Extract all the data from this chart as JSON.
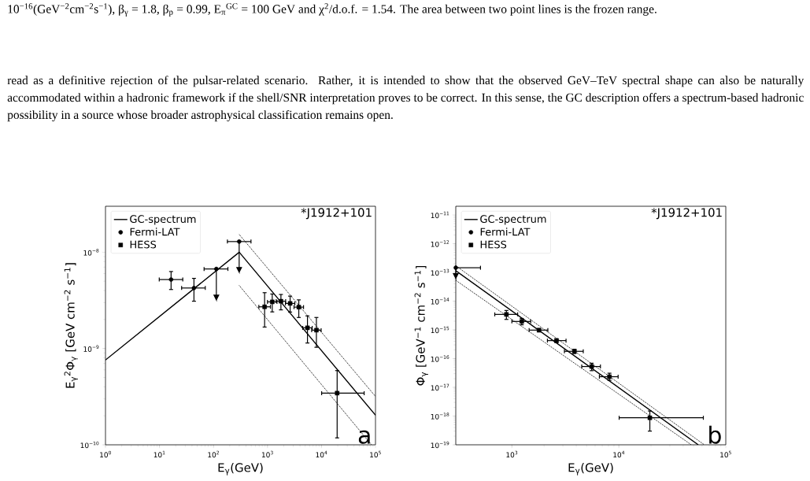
{
  "chart_data": [
    {
      "type": "scatter",
      "log": "xy",
      "legend": "top left",
      "xlabel": "E$_{γ}$(GeV)",
      "ylabel": "E$_{γ}$$^{2}$Φ$_{γ}$ [GeV cm$^{−2}$ s$^{−1}$]",
      "xlim": [
        1,
        100000
      ],
      "ylim": [
        1e-10,
        3e-08
      ],
      "xticks": [
        {
          "value": 1,
          "label": "10$^{0}$"
        },
        {
          "value": 10,
          "label": "10$^{1}$"
        },
        {
          "value": 100,
          "label": "10$^{2}$"
        },
        {
          "value": 1000,
          "label": "10$^{3}$"
        },
        {
          "value": 10000,
          "label": "10$^{4}$"
        },
        {
          "value": 100000,
          "label": "10$^{5}$"
        }
      ],
      "yticks": [
        {
          "value": 1e-10,
          "label": "10$^{−10}$"
        },
        {
          "value": 1e-09,
          "label": "10$^{−9}$"
        },
        {
          "value": 1e-08,
          "label": "10$^{−8}$"
        }
      ],
      "annotations": [
        "10$^{−16}$(GeV$^{−2}$cm$^{−2}$s$^{−1}$), β$_{γ}$ = 1.8, β$_{p}$ = 0.99, E$_{π}$$^{GC}$ = 100 GeV and χ$^{2}$/d.o.f. = 1.54.  The area between two point lines is the frozen range.",
        "read as a definitive rejection of the pulsar-related scenario. Rather, it is intended to show that the observed GeV–TeV spectral shape can also be naturally accommodated within a hadronic framework if the shell/SNR interpretation proves to be correct. In this sense, the GC description offers a spectrum-based hadronic possibility in a source whose broader astrophysical classification remains open.",
        "*J1912+101",
        "a"
      ],
      "series": [
        {
          "name": "GC-spectrum",
          "type": "line",
          "color": "#000000",
          "line_style": "solid",
          "x": [
            1,
            300,
            100000
          ],
          "values": [
            7.6e-10,
            1e-08,
            2.03e-10
          ]
        },
        {
          "type": "line",
          "color": "#000000",
          "line_style": "dotted",
          "x": [
            299,
            100000
          ],
          "values": [
            1.53e-08,
            3.18e-10
          ]
        },
        {
          "type": "line",
          "color": "#000000",
          "line_style": "dotted",
          "x": [
            299,
            84500
          ],
          "values": [
            4.52e-09,
            1e-10
          ]
        },
        {
          "name": "Fermi-LAT",
          "type": "scatter",
          "marker": "circle",
          "color": "#000000",
          "x": [
            16.4,
            43.5,
            113,
            299
          ],
          "values": [
            5.2e-09,
            4.25e-09,
            6.7e-09,
            1.29e-08
          ],
          "errors": [
            [
              4.1e-09,
              6.3e-09
            ],
            [
              3.1e-09,
              5.35e-09
            ],
            [
              3.2e-09,
              6.7e-09
            ],
            [
              6.2e-09,
              1.29e-08
            ]
          ],
          "xerrors": [
            [
              9.9,
              27
            ],
            [
              25.7,
              70.5
            ],
            [
              67,
              185
            ],
            [
              181,
              495
            ]
          ]
        },
        {
          "name": "HESS",
          "type": "scatter",
          "marker": "square",
          "color": "#000000",
          "x": [
            885,
            1225,
            1774,
            2625,
            3800,
            5500,
            8050,
            19500
          ],
          "values": [
            2.71e-09,
            3.05e-09,
            3.1e-09,
            2.94e-09,
            2.69e-09,
            1.64e-09,
            1.55e-09,
            3.44e-10
          ],
          "errors": [
            [
              1.67e-09,
              3.8e-09
            ],
            [
              2.4e-09,
              3.68e-09
            ],
            [
              2.52e-09,
              3.64e-09
            ],
            [
              2.39e-09,
              3.5e-09
            ],
            [
              2.1e-09,
              3.2e-09
            ],
            [
              1.14e-09,
              2.18e-09
            ],
            [
              1.03e-09,
              2.1e-09
            ],
            [
              1.18e-10,
              5.9e-10
            ]
          ],
          "xerrors": [
            [
              692,
              1133
            ],
            [
              1000,
              1500
            ],
            [
              1450,
              2170
            ],
            [
              2150,
              3210
            ],
            [
              3100,
              4650
            ],
            [
              4500,
              6730
            ],
            [
              6580,
              9850
            ],
            [
              10070,
              61700
            ]
          ]
        }
      ]
    },
    {
      "type": "scatter",
      "log": "xy",
      "legend": "top left",
      "xlabel": "E$_{γ}$(GeV)",
      "ylabel": "Φ$_{γ}$ [GeV$^{−1}$ cm$^{−2}$ s$^{−1}$]",
      "xlim": [
        299,
        100000
      ],
      "ylim": [
        1e-19,
        2e-11
      ],
      "xticks": [
        {
          "value": 1000,
          "label": "10$^{3}$"
        },
        {
          "value": 10000,
          "label": "10$^{4}$"
        },
        {
          "value": 100000,
          "label": "10$^{5}$"
        }
      ],
      "yticks": [
        {
          "value": 1e-19,
          "label": "10$^{−19}$"
        },
        {
          "value": 1e-18,
          "label": "10$^{−18}$"
        },
        {
          "value": 1e-17,
          "label": "10$^{−17}$"
        },
        {
          "value": 1e-16,
          "label": "10$^{−16}$"
        },
        {
          "value": 1e-15,
          "label": "10$^{−15}$"
        },
        {
          "value": 1e-14,
          "label": "10$^{−14}$"
        },
        {
          "value": 1e-13,
          "label": "10$^{−13}$"
        },
        {
          "value": 1e-12,
          "label": "10$^{−12}$"
        },
        {
          "value": 1e-11,
          "label": "10$^{−11}$"
        }
      ],
      "annotations": [
        "*J1912+101",
        "b"
      ],
      "series": [
        {
          "name": "GC-spectrum",
          "type": "line",
          "color": "#000000",
          "line_style": "solid",
          "x": [
            299,
            55300
          ],
          "values": [
            1.15e-13,
            1e-19
          ]
        },
        {
          "type": "line",
          "color": "#000000",
          "line_style": "dotted",
          "x": [
            299,
            63000
          ],
          "values": [
            1.7e-13,
            1e-19
          ]
        },
        {
          "type": "line",
          "color": "#000000",
          "line_style": "dotted",
          "x": [
            299,
            47600
          ],
          "values": [
            5.3e-14,
            1e-19
          ]
        },
        {
          "name": "Fermi-LAT",
          "type": "scatter",
          "marker": "circle",
          "color": "#000000",
          "x": [
            299
          ],
          "values": [
            1.45e-13
          ],
          "errors": [
            [
              6.2e-14,
              1.45e-13
            ]
          ],
          "xerrors": [
            [
              299,
              509
            ]
          ]
        },
        {
          "name": "HESS",
          "type": "scatter",
          "marker": "square",
          "color": "#000000",
          "x": [
            889,
            1238,
            1795,
            2612,
            3845,
            5570,
            8170,
            19500
          ],
          "values": [
            3.45e-15,
            1.96e-15,
            9.8e-16,
            4.23e-16,
            1.79e-16,
            5.3e-17,
            2.34e-17,
            8.7e-19
          ],
          "errors": [
            [
              2.31e-15,
              4.73e-15
            ],
            [
              1.5e-15,
              2.5e-15
            ],
            [
              8.5e-16,
              1.1e-15
            ],
            [
              3.6e-16,
              4.9e-16
            ],
            [
              1.5e-16,
              2.1e-16
            ],
            [
              3.8e-17,
              6.9e-17
            ],
            [
              1.75e-17,
              3.1e-17
            ],
            [
              3e-19,
              1.5e-18
            ]
          ],
          "xerrors": [
            [
              692,
              1133
            ],
            [
              1000,
              1500
            ],
            [
              1450,
              2170
            ],
            [
              2150,
              3210
            ],
            [
              3100,
              4650
            ],
            [
              4500,
              6730
            ],
            [
              6580,
              9850
            ],
            [
              10070,
              61700
            ]
          ]
        }
      ]
    }
  ]
}
